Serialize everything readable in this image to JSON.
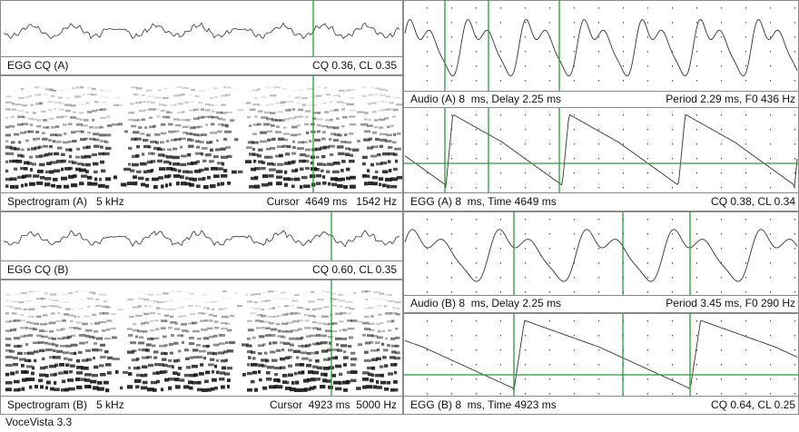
{
  "left": [
    {
      "label": "EGG CQ (A)",
      "readout": "CQ 0.36, CL 0.35"
    },
    {
      "label": "Spectrogram (A)   5 kHz",
      "readout": "Cursor  4649 ms   1542 Hz"
    },
    {
      "label": "EGG CQ (B)",
      "readout": "CQ 0.60, CL 0.35"
    },
    {
      "label": "Spectrogram (B)   5 kHz",
      "readout": "Cursor  4923 ms  5000 Hz"
    }
  ],
  "right": [
    {
      "label": "Audio (A) 8  ms, Delay 2.25 ms",
      "readout": "Period 2.29 ms, F0 436 Hz"
    },
    {
      "label": "EGG (A) 8  ms, Time 4649 ms",
      "readout": "CQ 0.38, CL 0.34"
    },
    {
      "label": "Audio (B) 8  ms, Delay 2.25 ms",
      "readout": "Period 3.45 ms, F0 290 Hz"
    },
    {
      "label": "EGG (B) 8  ms, Time 4923 ms",
      "readout": "CQ 0.64, CL 0.25"
    }
  ],
  "footer": "VoceVista 3.3"
}
